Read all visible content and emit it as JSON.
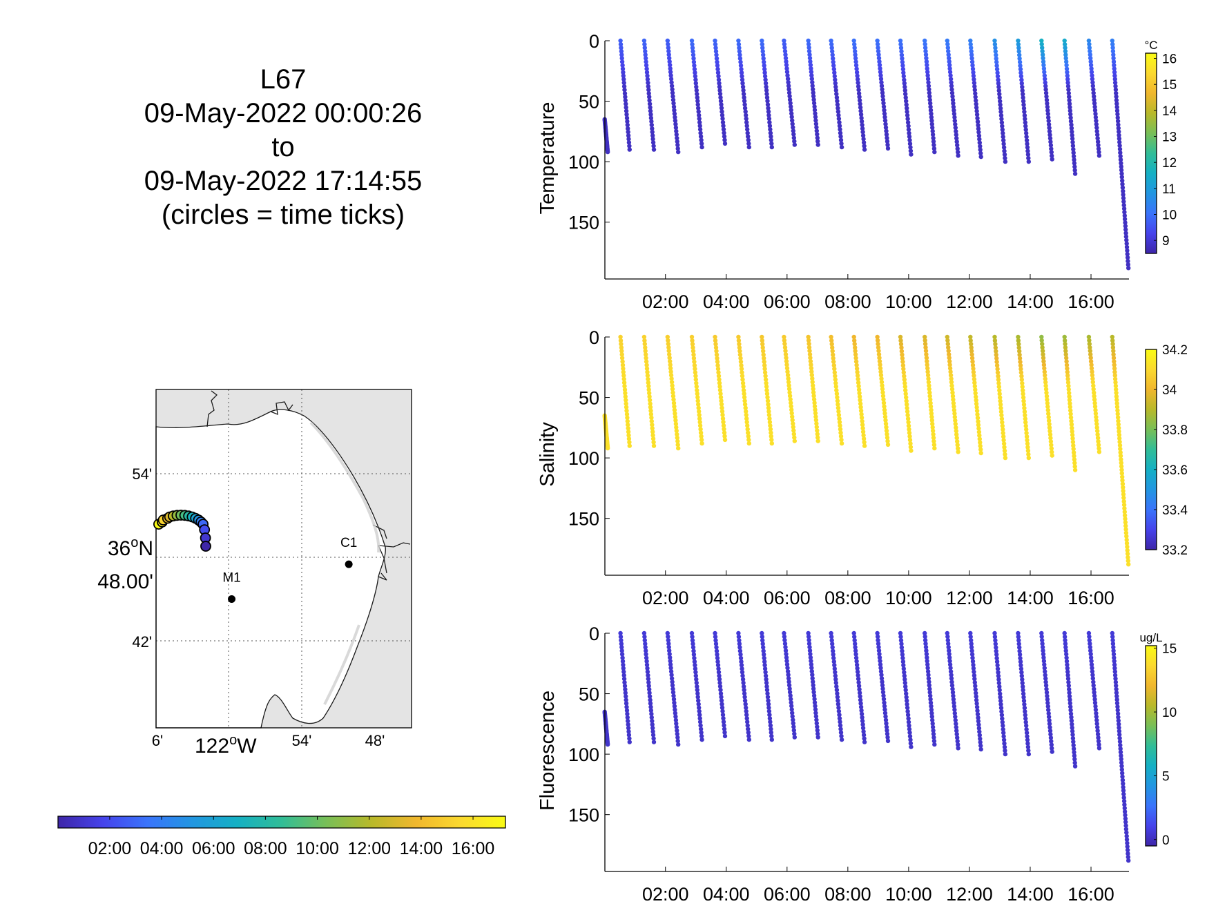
{
  "title_lines": [
    "L67",
    "09-May-2022 00:00:26",
    "to",
    "09-May-2022 17:14:55",
    "(circles = time ticks)"
  ],
  "colors": {
    "parula": [
      "#3e26a8",
      "#4643eb",
      "#3a74fb",
      "#2296e1",
      "#15b0c4",
      "#31bd97",
      "#78bf57",
      "#b8b92a",
      "#f0b72e",
      "#fbd92f",
      "#f9fb15"
    ],
    "land": "#e4e4e4",
    "sea": "#ffffff",
    "station": "#000000"
  },
  "time_axis": {
    "start_hours": 0.007,
    "end_hours": 17.249,
    "tick_labels": [
      "02:00",
      "04:00",
      "06:00",
      "08:00",
      "10:00",
      "12:00",
      "14:00",
      "16:00"
    ],
    "tick_hours": [
      2,
      4,
      6,
      8,
      10,
      12,
      14,
      16
    ]
  },
  "map": {
    "lat_labels": [
      "54'",
      "36°N 48.00'",
      "42'"
    ],
    "lon_labels": [
      "6'",
      "122°W",
      "54'",
      "48'"
    ],
    "stations": [
      {
        "label": "C1",
        "lon_min": -51.2,
        "lat_min": 47.5
      },
      {
        "label": "M1",
        "lon_min": -60.8,
        "lat_min": 45.0
      }
    ],
    "track_color_bar_ticks": [
      "02:00",
      "04:00",
      "06:00",
      "08:00",
      "10:00",
      "12:00",
      "14:00",
      "16:00"
    ]
  },
  "chart_data": [
    {
      "type": "scatter",
      "ylabel": "Temperature",
      "colorbar_unit": "°C",
      "colorbar_ticks": [
        "9",
        "10",
        "11",
        "12",
        "13",
        "14",
        "15",
        "16"
      ],
      "clim": [
        8.5,
        16.2
      ],
      "ylim": [
        0,
        197
      ],
      "y_ticks": [
        0,
        50,
        100,
        150
      ],
      "y_reversed": true,
      "x_ticks": [
        "02:00",
        "04:00",
        "06:00",
        "08:00",
        "10:00",
        "12:00",
        "14:00",
        "16:00"
      ],
      "profile_start_hours": [
        0.0,
        0.52,
        1.3,
        2.07,
        2.87,
        3.63,
        4.4,
        5.17,
        5.9,
        6.7,
        7.45,
        8.2,
        8.97,
        9.73,
        10.53,
        11.27,
        12.03,
        12.83,
        13.6,
        14.37,
        15.13,
        15.93,
        16.7
      ],
      "profile_end_hours": [
        0.1,
        0.82,
        1.62,
        2.42,
        3.2,
        3.96,
        4.75,
        5.5,
        6.25,
        7.02,
        7.8,
        8.55,
        9.32,
        10.08,
        10.85,
        11.63,
        12.38,
        13.18,
        13.95,
        14.72,
        15.48,
        16.27,
        17.23
      ],
      "profile_max_depth": [
        92,
        90,
        90,
        92,
        88,
        85,
        88,
        88,
        86,
        86,
        88,
        90,
        89,
        94,
        92,
        95,
        96,
        100,
        100,
        98,
        110,
        95,
        188
      ],
      "surface_values": [
        9.2,
        9.7,
        9.8,
        9.7,
        9.9,
        9.8,
        9.9,
        9.9,
        9.7,
        9.9,
        9.9,
        10.0,
        10.0,
        10.0,
        10.1,
        10.2,
        10.3,
        10.7,
        11.0,
        11.6,
        11.4,
        10.5,
        10.3
      ],
      "bottom_value": 8.8
    },
    {
      "type": "scatter",
      "ylabel": "Salinity",
      "colorbar_unit": "",
      "colorbar_ticks": [
        "33.2",
        "33.4",
        "33.6",
        "33.8",
        "34",
        "34.2"
      ],
      "clim": [
        33.2,
        34.2
      ],
      "ylim": [
        0,
        197
      ],
      "y_ticks": [
        0,
        50,
        100,
        150
      ],
      "y_reversed": true,
      "x_ticks": [
        "02:00",
        "04:00",
        "06:00",
        "08:00",
        "10:00",
        "12:00",
        "14:00",
        "16:00"
      ],
      "profile_start_hours": [
        0.0,
        0.52,
        1.3,
        2.07,
        2.87,
        3.63,
        4.4,
        5.17,
        5.9,
        6.7,
        7.45,
        8.2,
        8.97,
        9.73,
        10.53,
        11.27,
        12.03,
        12.83,
        13.6,
        14.37,
        15.13,
        15.93,
        16.7
      ],
      "profile_end_hours": [
        0.1,
        0.82,
        1.62,
        2.42,
        3.2,
        3.96,
        4.75,
        5.5,
        6.25,
        7.02,
        7.8,
        8.55,
        9.32,
        10.08,
        10.85,
        11.63,
        12.38,
        13.18,
        13.95,
        14.72,
        15.48,
        16.27,
        17.23
      ],
      "profile_max_depth": [
        92,
        90,
        90,
        92,
        88,
        85,
        88,
        88,
        86,
        86,
        88,
        90,
        89,
        94,
        92,
        95,
        96,
        100,
        100,
        98,
        110,
        95,
        188
      ],
      "surface_values": [
        34.08,
        34.08,
        34.08,
        34.07,
        34.07,
        34.06,
        34.06,
        34.05,
        34.06,
        34.04,
        34.02,
        34.0,
        34.0,
        33.96,
        33.96,
        33.94,
        33.92,
        33.9,
        33.88,
        33.84,
        33.86,
        33.88,
        33.9
      ],
      "bottom_value": 34.12
    },
    {
      "type": "scatter",
      "ylabel": "Fluorescence",
      "colorbar_unit": "ug/L",
      "colorbar_ticks": [
        "0",
        "5",
        "10",
        "15"
      ],
      "clim": [
        -0.5,
        15.2
      ],
      "ylim": [
        0,
        197
      ],
      "y_ticks": [
        0,
        50,
        100,
        150
      ],
      "y_reversed": true,
      "x_ticks": [
        "02:00",
        "04:00",
        "06:00",
        "08:00",
        "10:00",
        "12:00",
        "14:00",
        "16:00"
      ],
      "profile_start_hours": [
        0.0,
        0.52,
        1.3,
        2.07,
        2.87,
        3.63,
        4.4,
        5.17,
        5.9,
        6.7,
        7.45,
        8.2,
        8.97,
        9.73,
        10.53,
        11.27,
        12.03,
        12.83,
        13.6,
        14.37,
        15.13,
        15.93,
        16.7
      ],
      "profile_end_hours": [
        0.1,
        0.82,
        1.62,
        2.42,
        3.2,
        3.96,
        4.75,
        5.5,
        6.25,
        7.02,
        7.8,
        8.55,
        9.32,
        10.08,
        10.85,
        11.63,
        12.38,
        13.18,
        13.95,
        14.72,
        15.48,
        16.27,
        17.23
      ],
      "profile_max_depth": [
        92,
        90,
        90,
        92,
        88,
        85,
        88,
        88,
        86,
        86,
        88,
        90,
        89,
        94,
        92,
        95,
        96,
        100,
        100,
        98,
        110,
        95,
        188
      ],
      "surface_values": [
        0.6,
        0.6,
        0.6,
        0.6,
        0.6,
        0.6,
        0.6,
        0.6,
        0.6,
        0.6,
        0.6,
        0.6,
        0.6,
        0.6,
        0.6,
        0.6,
        0.6,
        0.6,
        0.6,
        0.6,
        0.6,
        0.6,
        0.6
      ],
      "bottom_value": 0.3
    }
  ]
}
